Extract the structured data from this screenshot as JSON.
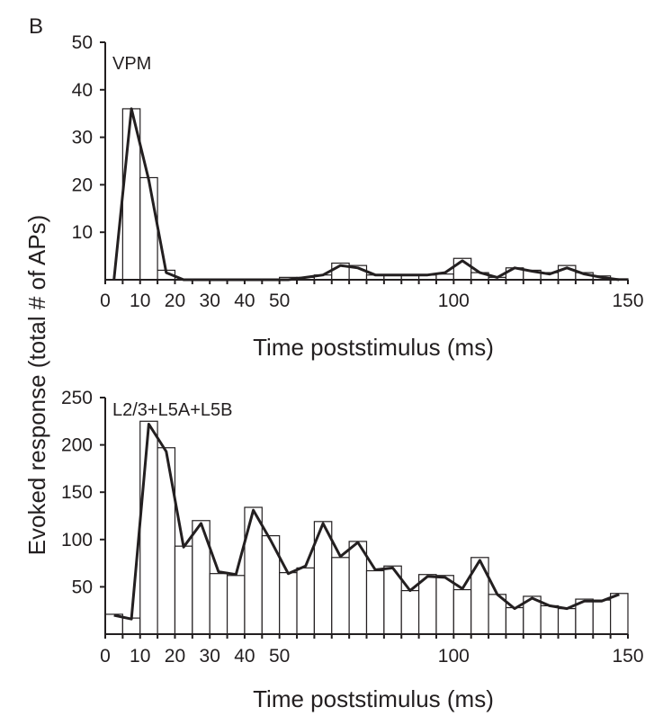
{
  "figure": {
    "panel_letter": "B",
    "shared_ylabel": "Evoked response (total # of APs)"
  },
  "chart_data": [
    {
      "type": "bar",
      "title": "VPM",
      "xlabel": "Time poststimulus (ms)",
      "ylabel": "Evoked response (total # of APs)",
      "xlim": [
        0,
        150
      ],
      "ylim": [
        0,
        50
      ],
      "bin_width_ms": 5,
      "x_ticks": [
        0,
        10,
        20,
        30,
        40,
        50,
        100,
        150
      ],
      "x_tick_labels": [
        "0",
        "10",
        "20",
        "30",
        "40",
        "50",
        "100",
        "150"
      ],
      "y_ticks": [
        10,
        20,
        30,
        40,
        50
      ],
      "y_tick_labels": [
        "10",
        "20",
        "30",
        "40",
        "50"
      ],
      "bins": [
        0,
        5,
        10,
        15,
        20,
        25,
        30,
        35,
        40,
        45,
        50,
        55,
        60,
        65,
        70,
        75,
        80,
        85,
        90,
        95,
        100,
        105,
        110,
        115,
        120,
        125,
        130,
        135,
        140,
        145
      ],
      "values": [
        0,
        36,
        21.5,
        2,
        0,
        0,
        0,
        0,
        0,
        0,
        0.5,
        0.5,
        1,
        3.5,
        3,
        1,
        1,
        1,
        1,
        1.2,
        4.5,
        1.5,
        0.5,
        2.5,
        2,
        1.5,
        3,
        1.5,
        0.8,
        0.2
      ],
      "line": {
        "x": [
          2.5,
          7.5,
          12.5,
          17.5,
          22.5,
          27.5,
          32.5,
          37.5,
          42.5,
          47.5,
          52.5,
          57.5,
          62.5,
          67.5,
          72.5,
          77.5,
          82.5,
          87.5,
          92.5,
          97.5,
          102.5,
          107.5,
          112.5,
          117.5,
          122.5,
          127.5,
          132.5,
          137.5,
          142.5,
          147.5
        ],
        "y": [
          0,
          36,
          21,
          1.5,
          0,
          0,
          0,
          0,
          0,
          0,
          0,
          0.5,
          1,
          3,
          2.5,
          1,
          1,
          1,
          1,
          1.5,
          4,
          1.5,
          0.5,
          2.5,
          1.8,
          1.2,
          2.5,
          1.2,
          0.5,
          0
        ]
      },
      "colors": {
        "ink": "#231f20",
        "bar_fill": "#ffffff"
      }
    },
    {
      "type": "bar",
      "title": "L2/3+L5A+L5B",
      "xlabel": "Time poststimulus (ms)",
      "ylabel": "Evoked response (total # of APs)",
      "xlim": [
        0,
        150
      ],
      "ylim": [
        0,
        250
      ],
      "bin_width_ms": 5,
      "x_ticks": [
        0,
        10,
        20,
        30,
        40,
        50,
        100,
        150
      ],
      "x_tick_labels": [
        "0",
        "10",
        "20",
        "30",
        "40",
        "50",
        "100",
        "150"
      ],
      "y_ticks": [
        50,
        100,
        150,
        200,
        250
      ],
      "y_tick_labels": [
        "50",
        "100",
        "150",
        "200",
        "250"
      ],
      "bins": [
        0,
        5,
        10,
        15,
        20,
        25,
        30,
        35,
        40,
        45,
        50,
        55,
        60,
        65,
        70,
        75,
        80,
        85,
        90,
        95,
        100,
        105,
        110,
        115,
        120,
        125,
        130,
        135,
        140,
        145
      ],
      "values": [
        21,
        17,
        225,
        197,
        93,
        120,
        64,
        62,
        134,
        104,
        65,
        70,
        119,
        81,
        98,
        67,
        72,
        46,
        63,
        62,
        47,
        81,
        42,
        28,
        40,
        30,
        27,
        37,
        36,
        43
      ],
      "line": {
        "x": [
          2.5,
          7.5,
          12.5,
          17.5,
          22.5,
          27.5,
          32.5,
          37.5,
          42.5,
          47.5,
          52.5,
          57.5,
          62.5,
          67.5,
          72.5,
          77.5,
          82.5,
          87.5,
          92.5,
          97.5,
          102.5,
          107.5,
          112.5,
          117.5,
          122.5,
          127.5,
          132.5,
          137.5,
          142.5,
          147.5
        ],
        "y": [
          20,
          16,
          222,
          193,
          92,
          117,
          66,
          63,
          131,
          99,
          64,
          72,
          117,
          82,
          97,
          68,
          70,
          46,
          61,
          60,
          48,
          78,
          42,
          27,
          38,
          30,
          27,
          35,
          35,
          42
        ]
      },
      "colors": {
        "ink": "#231f20",
        "bar_fill": "#ffffff"
      }
    }
  ]
}
